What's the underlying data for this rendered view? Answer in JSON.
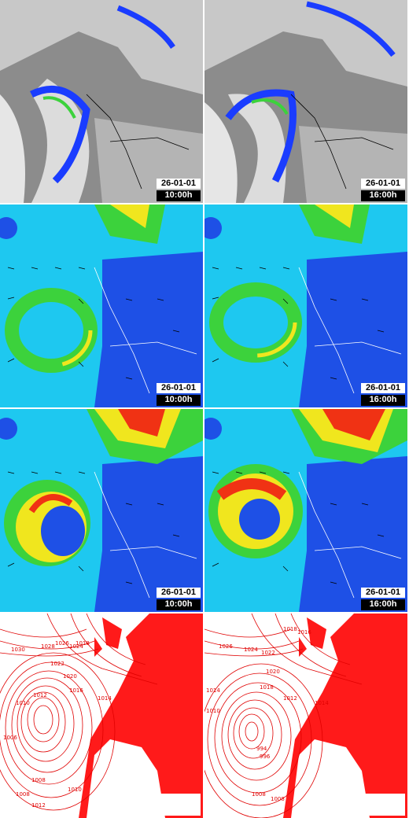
{
  "panels": [
    {
      "row": "satellite",
      "column": "left",
      "date": "26-01-01",
      "time": "10:00h"
    },
    {
      "row": "satellite",
      "column": "right",
      "date": "26-01-01",
      "time": "16:00h"
    },
    {
      "row": "wind_low",
      "column": "left",
      "date": "26-01-01",
      "time": "10:00h"
    },
    {
      "row": "wind_low",
      "column": "right",
      "date": "26-01-01",
      "time": "16:00h"
    },
    {
      "row": "wind_high",
      "column": "left",
      "date": "26-01-01",
      "time": "10:00h"
    },
    {
      "row": "wind_high",
      "column": "right",
      "date": "26-01-01",
      "time": "16:00h"
    },
    {
      "row": "pressure",
      "column": "left"
    },
    {
      "row": "pressure",
      "column": "right"
    }
  ],
  "isobar_labels": {
    "left": [
      "1030",
      "1028",
      "1026",
      "1024",
      "1022",
      "1020",
      "1018",
      "1016",
      "1014",
      "1012",
      "1010",
      "1008",
      "1006",
      "1008",
      "1010",
      "1012"
    ],
    "right": [
      "1018",
      "1016",
      "1026",
      "1024",
      "1022",
      "1020",
      "1018",
      "1014",
      "1012",
      "1010",
      "1014",
      "994",
      "996",
      "1008",
      "1008"
    ]
  },
  "colors": {
    "land_red": "#ff1a1a",
    "isobar": "#e00000",
    "cloud_blue": "#1a3cff",
    "wind_blue": "#1e50e6",
    "wind_cyan": "#1ec8f0",
    "wind_green": "#3cd23c",
    "wind_yellow": "#f0e61e",
    "wind_red": "#f03214",
    "satellite_grey": "#b4b4b4"
  }
}
